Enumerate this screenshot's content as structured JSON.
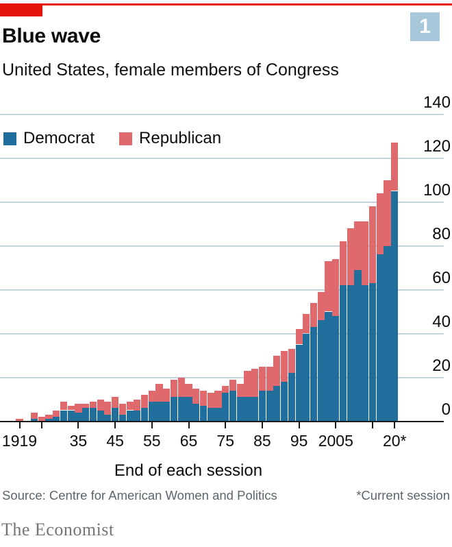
{
  "header": {
    "title": "Blue wave",
    "subtitle": "United States, female members of Congress",
    "badge": "1",
    "accent_color": "#e3120b",
    "badge_color": "#a7c8db"
  },
  "legend": {
    "items": [
      {
        "label": "Democrat",
        "color": "#1f6e9b"
      },
      {
        "label": "Republican",
        "color": "#e0696d"
      }
    ]
  },
  "chart_data": {
    "type": "bar",
    "stacked": true,
    "title": "Blue wave",
    "subtitle": "United States, female members of Congress",
    "xlabel": "End of each session",
    "ylabel": "",
    "ylim": [
      0,
      140
    ],
    "yticks": [
      0,
      20,
      40,
      60,
      80,
      100,
      120,
      140
    ],
    "grid": true,
    "legend_position": "top-left",
    "grid_color": "#c5d3da",
    "x": [
      1919,
      1921,
      1923,
      1925,
      1927,
      1929,
      1931,
      1933,
      1935,
      1937,
      1939,
      1941,
      1943,
      1945,
      1947,
      1949,
      1951,
      1953,
      1955,
      1957,
      1959,
      1961,
      1963,
      1965,
      1967,
      1969,
      1971,
      1973,
      1975,
      1977,
      1979,
      1981,
      1983,
      1985,
      1987,
      1989,
      1991,
      1993,
      1995,
      1997,
      1999,
      2001,
      2003,
      2005,
      2007,
      2009,
      2011,
      2013,
      2015,
      2017,
      2019,
      2021
    ],
    "series": [
      {
        "name": "Democrat",
        "color": "#1f6e9b",
        "values": [
          0,
          0,
          1,
          0,
          1,
          2,
          5,
          5,
          4,
          6,
          6,
          5,
          3,
          6,
          3,
          5,
          5,
          6,
          9,
          9,
          9,
          11,
          11,
          11,
          8,
          7,
          6,
          6,
          13,
          14,
          11,
          11,
          11,
          14,
          14,
          16,
          18,
          22,
          35,
          40,
          43,
          46,
          50,
          48,
          62,
          62,
          69,
          62,
          63,
          76,
          80,
          105
        ]
      },
      {
        "name": "Republican",
        "color": "#e0696d",
        "values": [
          1,
          0,
          3,
          2,
          2,
          3,
          4,
          2,
          4,
          2,
          3,
          5,
          6,
          5,
          5,
          4,
          5,
          6,
          5,
          8,
          6,
          8,
          9,
          6,
          7,
          7,
          7,
          8,
          3,
          5,
          6,
          12,
          13,
          11,
          11,
          14,
          14,
          11,
          7,
          9,
          11,
          13,
          23,
          26,
          20,
          26,
          22,
          29,
          35,
          28,
          30,
          22
        ]
      }
    ],
    "xticks": [
      {
        "year": 1919,
        "label": "1919"
      },
      {
        "year": 1925,
        "label": ""
      },
      {
        "year": 1935,
        "label": "35"
      },
      {
        "year": 1945,
        "label": "45"
      },
      {
        "year": 1955,
        "label": "55"
      },
      {
        "year": 1965,
        "label": "65"
      },
      {
        "year": 1975,
        "label": "75"
      },
      {
        "year": 1985,
        "label": "85"
      },
      {
        "year": 1995,
        "label": "95"
      },
      {
        "year": 2005,
        "label": "2005"
      },
      {
        "year": 2015,
        "label": ""
      },
      {
        "year": 2021,
        "label": "20*"
      }
    ]
  },
  "footer": {
    "source": "Source: Centre for American Women and Politics",
    "note": "*Current session",
    "brand": "The Economist"
  }
}
